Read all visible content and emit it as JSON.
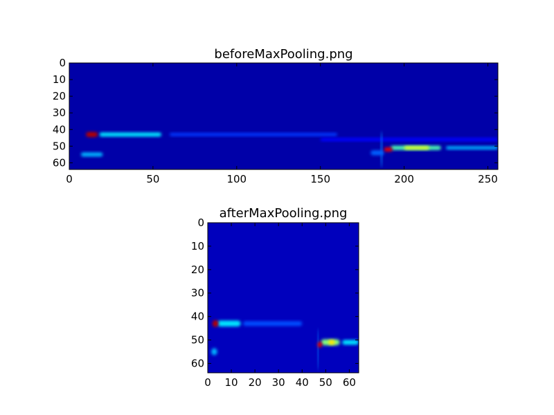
{
  "chart_data": [
    {
      "type": "heatmap",
      "title": "beforeMaxPooling.png",
      "colormap": "jet",
      "background_value": 0.04,
      "xlim": [
        0,
        256
      ],
      "ylim": [
        64,
        0
      ],
      "xticks": [
        0,
        50,
        100,
        150,
        200,
        250
      ],
      "yticks": [
        0,
        10,
        20,
        30,
        40,
        50,
        60
      ],
      "features": [
        {
          "x0": 60,
          "x1": 160,
          "y": 43,
          "h": 2,
          "v": 0.18
        },
        {
          "x0": 18,
          "x1": 55,
          "y": 43,
          "h": 2.5,
          "v": 0.35
        },
        {
          "x0": 7,
          "x1": 20,
          "y": 55,
          "h": 2.5,
          "v": 0.3
        },
        {
          "x0": 10,
          "x1": 17,
          "y": 43,
          "h": 3,
          "v": 0.95
        },
        {
          "x0": 150,
          "x1": 256,
          "y": 46,
          "h": 2,
          "v": 0.13
        },
        {
          "x0": 186,
          "x1": 187,
          "y": 52,
          "h": 22,
          "v": 0.25
        },
        {
          "x0": 180,
          "x1": 188,
          "y": 54,
          "h": 3,
          "v": 0.22
        },
        {
          "x0": 192,
          "x1": 222,
          "y": 51,
          "h": 2.5,
          "v": 0.45
        },
        {
          "x0": 200,
          "x1": 215,
          "y": 51,
          "h": 2,
          "v": 0.6
        },
        {
          "x0": 225,
          "x1": 256,
          "y": 51,
          "h": 2,
          "v": 0.3
        },
        {
          "x0": 188,
          "x1": 193,
          "y": 52,
          "h": 2.5,
          "v": 0.9
        }
      ]
    },
    {
      "type": "heatmap",
      "title": "afterMaxPooling.png",
      "colormap": "jet",
      "background_value": 0.06,
      "xlim": [
        0,
        64
      ],
      "ylim": [
        64,
        0
      ],
      "xticks": [
        0,
        10,
        20,
        30,
        40,
        50,
        60
      ],
      "yticks": [
        0,
        10,
        20,
        30,
        40,
        50,
        60
      ],
      "features": [
        {
          "x0": 15,
          "x1": 40,
          "y": 43,
          "h": 2,
          "v": 0.2
        },
        {
          "x0": 4,
          "x1": 14,
          "y": 43,
          "h": 2.5,
          "v": 0.35
        },
        {
          "x0": 1.5,
          "x1": 4,
          "y": 55,
          "h": 3,
          "v": 0.3
        },
        {
          "x0": 2,
          "x1": 4.5,
          "y": 43,
          "h": 3,
          "v": 0.95
        },
        {
          "x0": 46.5,
          "x1": 47,
          "y": 54,
          "h": 18,
          "v": 0.25
        },
        {
          "x0": 48,
          "x1": 56,
          "y": 51,
          "h": 2.5,
          "v": 0.5
        },
        {
          "x0": 51,
          "x1": 54,
          "y": 51,
          "h": 2,
          "v": 0.65
        },
        {
          "x0": 57,
          "x1": 64,
          "y": 51,
          "h": 2,
          "v": 0.35
        },
        {
          "x0": 46.5,
          "x1": 48.5,
          "y": 52,
          "h": 2.5,
          "v": 0.9
        }
      ]
    }
  ]
}
